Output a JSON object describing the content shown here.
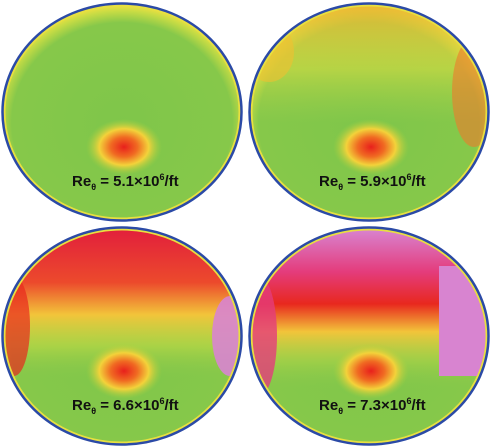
{
  "panels": [
    {
      "label": {
        "base": "Re",
        "sub": "θ",
        "value": " = 5.1×10",
        "sup": "6",
        "unit": "/ft"
      }
    },
    {
      "label": {
        "base": "Re",
        "sub": "θ",
        "value": " = 5.9×10",
        "sup": "6",
        "unit": "/ft"
      }
    },
    {
      "label": {
        "base": "Re",
        "sub": "θ",
        "value": " = 6.6×10",
        "sup": "6",
        "unit": "/ft"
      }
    },
    {
      "label": {
        "base": "Re",
        "sub": "θ",
        "value": " = 7.3×10",
        "sup": "6",
        "unit": "/ft"
      }
    }
  ]
}
